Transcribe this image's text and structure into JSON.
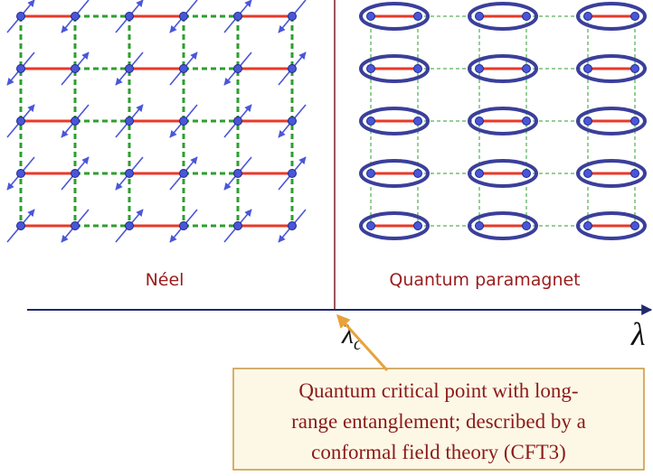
{
  "phases": {
    "left": "Néel",
    "right": "Quantum paramagnet"
  },
  "axis": {
    "critical_label": "λ",
    "critical_subscript": "c",
    "label": "λ"
  },
  "callout": {
    "lines": [
      "Quantum critical point with long-",
      "range entanglement; described by a",
      "conformal field theory (CFT3)"
    ]
  }
}
